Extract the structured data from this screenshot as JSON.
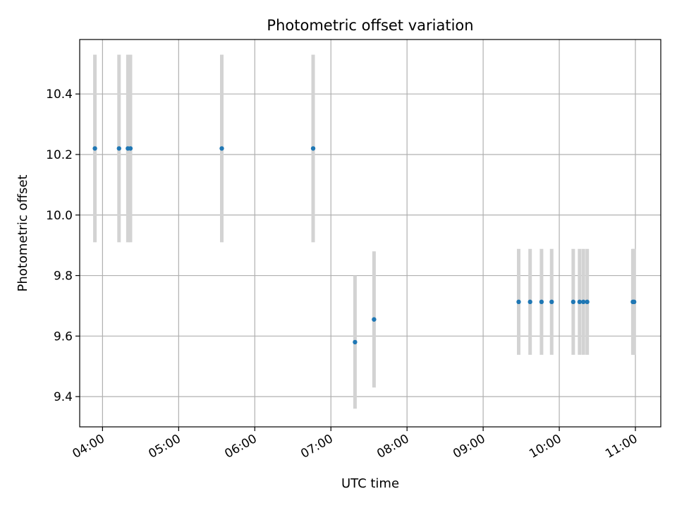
{
  "chart_data": {
    "type": "scatter",
    "title": "Photometric offset variation",
    "xlabel": "UTC time",
    "ylabel": "Photometric offset",
    "xlim": [
      "03:42",
      "11:20"
    ],
    "ylim": [
      9.3,
      10.58
    ],
    "x_ticks": [
      "04:00",
      "05:00",
      "06:00",
      "07:00",
      "08:00",
      "09:00",
      "10:00",
      "11:00"
    ],
    "y_ticks": [
      "9.4",
      "9.6",
      "9.8",
      "10.0",
      "10.2",
      "10.4"
    ],
    "grid": true,
    "colors": {
      "points": "#1f77b4",
      "error_bars": "#d3d3d3",
      "grid": "#b0b0b0"
    },
    "series": [
      {
        "points": [
          {
            "x": "03:54",
            "y": 10.22,
            "err": 0.31
          },
          {
            "x": "04:13",
            "y": 10.22,
            "err": 0.31
          },
          {
            "x": "04:20",
            "y": 10.22,
            "err": 0.31
          },
          {
            "x": "04:22",
            "y": 10.22,
            "err": 0.31
          },
          {
            "x": "05:34",
            "y": 10.22,
            "err": 0.31
          },
          {
            "x": "06:46",
            "y": 10.22,
            "err": 0.31
          },
          {
            "x": "07:19",
            "y": 9.58,
            "err": 0.22
          },
          {
            "x": "07:34",
            "y": 9.655,
            "err": 0.225
          },
          {
            "x": "09:28",
            "y": 9.713,
            "err": 0.175
          },
          {
            "x": "09:37",
            "y": 9.713,
            "err": 0.175
          },
          {
            "x": "09:46",
            "y": 9.713,
            "err": 0.175
          },
          {
            "x": "09:54",
            "y": 9.713,
            "err": 0.175
          },
          {
            "x": "10:11",
            "y": 9.713,
            "err": 0.175
          },
          {
            "x": "10:16",
            "y": 9.713,
            "err": 0.175
          },
          {
            "x": "10:19",
            "y": 9.713,
            "err": 0.175
          },
          {
            "x": "10:22",
            "y": 9.713,
            "err": 0.175
          },
          {
            "x": "10:58",
            "y": 9.713,
            "err": 0.175
          },
          {
            "x": "10:59",
            "y": 9.713,
            "err": 0.175
          }
        ]
      }
    ]
  }
}
